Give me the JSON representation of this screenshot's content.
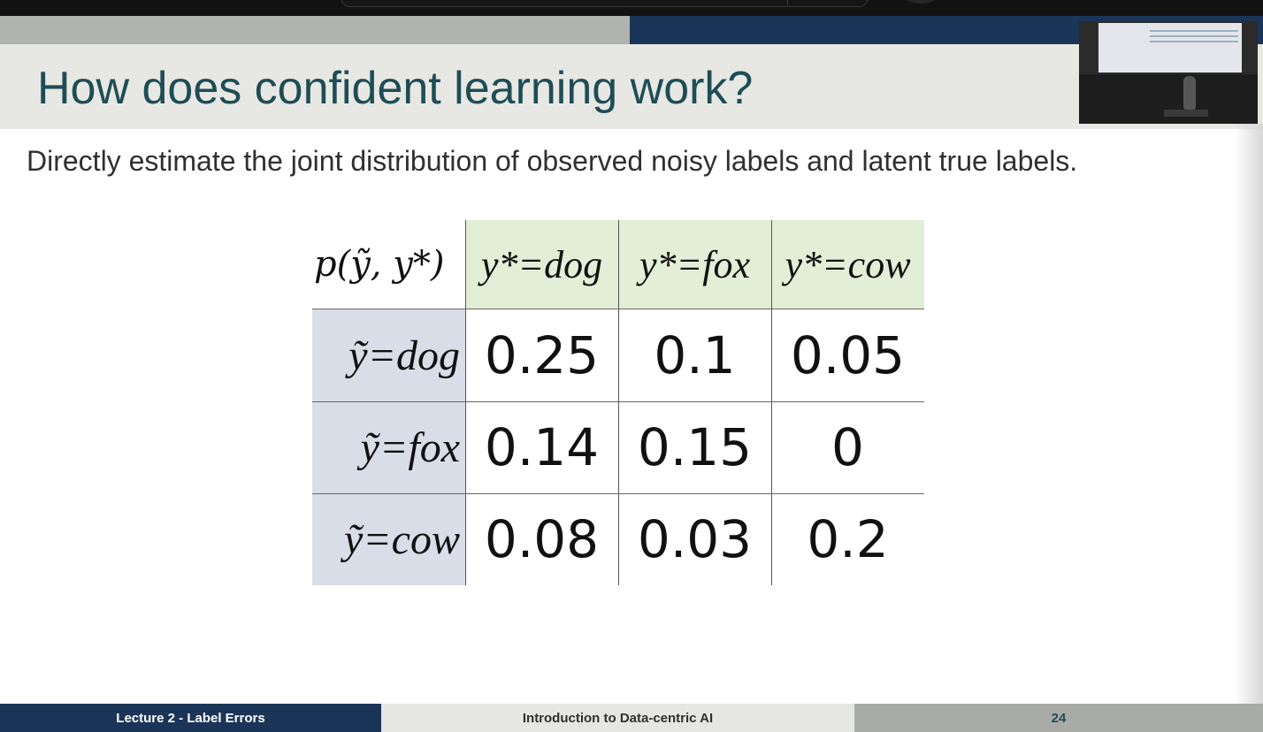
{
  "slide": {
    "title": "How does confident learning work?",
    "subtitle": "Directly estimate the joint distribution of observed noisy labels and latent true labels."
  },
  "table": {
    "corner": "p(ỹ, y*)",
    "columns": [
      "y*=dog",
      "y*=fox",
      "y*=cow"
    ],
    "rows": [
      {
        "label": "ỹ=dog",
        "values": [
          "0.25",
          "0.1",
          "0.05"
        ]
      },
      {
        "label": "ỹ=fox",
        "values": [
          "0.14",
          "0.15",
          "0"
        ]
      },
      {
        "label": "ỹ=cow",
        "values": [
          "0.08",
          "0.03",
          "0.2"
        ]
      }
    ]
  },
  "footer": {
    "left": "Lecture 2 - Label Errors",
    "center": "Introduction to Data-centric AI",
    "page": "24"
  },
  "colors": {
    "title": "#1f4d55",
    "navy": "#1b3558",
    "column_header_bg": "#e2eed6",
    "row_header_bg": "#d9dde7"
  }
}
